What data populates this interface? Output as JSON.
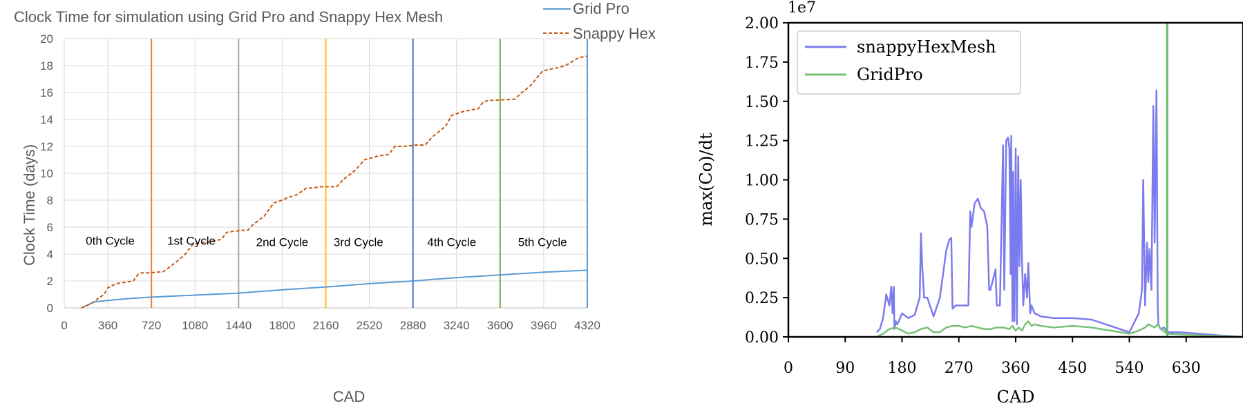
{
  "chart_data": [
    {
      "type": "line",
      "title": "Clock Time for simulation  using Grid Pro and Snappy Hex Mesh",
      "xlabel": "CAD",
      "ylabel": "Clock Time (days)",
      "xlim": [
        0,
        4320
      ],
      "ylim": [
        0,
        20
      ],
      "xticks": [
        0,
        360,
        720,
        1080,
        1440,
        1800,
        2160,
        2520,
        2880,
        3240,
        3600,
        3960,
        4320
      ],
      "yticks": [
        0,
        2,
        4,
        6,
        8,
        10,
        12,
        14,
        16,
        18,
        20
      ],
      "grid": true,
      "legend_position": "top-right, outside plot",
      "series": [
        {
          "name": "Grid Pro",
          "color": "#5b9bd5",
          "style": "solid",
          "x": [
            140,
            250,
            360,
            540,
            720,
            1080,
            1440,
            1800,
            2160,
            2520,
            2880,
            3240,
            3600,
            3960,
            4320
          ],
          "y": [
            0.0,
            0.45,
            0.55,
            0.7,
            0.8,
            0.95,
            1.1,
            1.35,
            1.55,
            1.8,
            2.0,
            2.25,
            2.45,
            2.65,
            2.8
          ]
        },
        {
          "name": "Snappy Hex",
          "color": "#c55a11",
          "style": "dashed",
          "x": [
            140,
            220,
            280,
            330,
            360,
            430,
            500,
            570,
            610,
            640,
            700,
            820,
            880,
            950,
            1000,
            1060,
            1100,
            1200,
            1300,
            1340,
            1400,
            1520,
            1560,
            1650,
            1730,
            1770,
            1850,
            1920,
            2000,
            2050,
            2120,
            2250,
            2300,
            2400,
            2480,
            2600,
            2680,
            2730,
            2800,
            2900,
            2980,
            3040,
            3150,
            3200,
            3300,
            3420,
            3460,
            3500,
            3720,
            3780,
            3850,
            3950,
            4100,
            4140,
            4250,
            4320
          ],
          "y": [
            0.0,
            0.3,
            0.7,
            1.0,
            1.5,
            1.8,
            1.9,
            2.0,
            2.5,
            2.6,
            2.6,
            2.7,
            3.1,
            3.6,
            4.0,
            4.7,
            4.8,
            4.9,
            5.1,
            5.6,
            5.7,
            5.8,
            6.2,
            6.8,
            7.8,
            7.9,
            8.2,
            8.4,
            8.9,
            8.9,
            9.0,
            9.0,
            9.5,
            10.2,
            11.0,
            11.3,
            11.4,
            12.0,
            12.0,
            12.1,
            12.1,
            12.7,
            13.5,
            14.3,
            14.6,
            14.8,
            15.3,
            15.4,
            15.5,
            16.0,
            16.5,
            17.6,
            17.9,
            18.0,
            18.6,
            18.7
          ]
        }
      ],
      "vertical_lines": [
        {
          "x": 720,
          "color": "#ed7d31"
        },
        {
          "x": 1440,
          "color": "#a5a5a5"
        },
        {
          "x": 2160,
          "color": "#ffc000"
        },
        {
          "x": 2880,
          "color": "#4472c4"
        },
        {
          "x": 3600,
          "color": "#70ad47"
        },
        {
          "x": 4320,
          "color": "#5b9bd5"
        }
      ],
      "annotations": [
        {
          "text": "0th Cycle",
          "x": 380,
          "y": 5.0
        },
        {
          "text": "1st Cycle",
          "x": 1050,
          "y": 5.0
        },
        {
          "text": "2nd Cycle",
          "x": 1800,
          "y": 4.9
        },
        {
          "text": "3rd Cycle",
          "x": 2430,
          "y": 4.9
        },
        {
          "text": "4th Cycle",
          "x": 3200,
          "y": 4.9
        },
        {
          "text": "5th Cycle",
          "x": 3950,
          "y": 4.9
        }
      ]
    },
    {
      "type": "line",
      "title": "",
      "xlabel": "CAD",
      "ylabel": "max(Co)/dt",
      "y_offset_label": "1e7",
      "xlim": [
        0,
        720
      ],
      "ylim": [
        0,
        2.0
      ],
      "xticks": [
        0,
        90,
        180,
        270,
        360,
        450,
        540,
        630
      ],
      "yticks": [
        "0.00",
        "0.25",
        "0.50",
        "0.75",
        "1.00",
        "1.25",
        "1.50",
        "1.75",
        "2.00"
      ],
      "grid": false,
      "legend_position": "top-left",
      "vertical_lines": [
        {
          "x": 600,
          "color": "#66bb66"
        }
      ],
      "series": [
        {
          "name": "snappyHexMesh",
          "color": "#7b7bee",
          "style": "solid",
          "x": [
            140,
            145,
            150,
            155,
            160,
            163,
            165,
            167,
            168,
            170,
            172,
            175,
            180,
            190,
            200,
            208,
            210,
            212,
            215,
            220,
            230,
            240,
            250,
            255,
            258,
            260,
            265,
            270,
            280,
            285,
            288,
            290,
            295,
            300,
            305,
            310,
            315,
            318,
            320,
            325,
            328,
            330,
            335,
            340,
            342,
            345,
            348,
            350,
            352,
            353,
            355,
            356,
            358,
            360,
            362,
            364,
            366,
            368,
            370,
            372,
            375,
            378,
            380,
            383,
            385,
            390,
            400,
            420,
            450,
            480,
            510,
            540,
            555,
            560,
            562,
            565,
            568,
            570,
            572,
            575,
            578,
            580,
            583,
            585,
            586,
            588,
            590,
            595,
            600,
            620,
            650,
            680,
            720
          ],
          "y": [
            0.03,
            0.05,
            0.12,
            0.27,
            0.2,
            0.32,
            0.15,
            0.32,
            0.05,
            0.1,
            0.08,
            0.1,
            0.15,
            0.12,
            0.14,
            0.25,
            0.66,
            0.45,
            0.25,
            0.25,
            0.13,
            0.25,
            0.55,
            0.62,
            0.63,
            0.18,
            0.2,
            0.2,
            0.2,
            0.2,
            0.8,
            0.7,
            0.85,
            0.88,
            0.82,
            0.8,
            0.7,
            0.3,
            0.3,
            0.38,
            0.43,
            0.2,
            0.2,
            1.22,
            0.3,
            1.25,
            1.27,
            1.2,
            0.4,
            1.28,
            0.1,
            1.05,
            0.1,
            1.2,
            0.08,
            1.15,
            0.45,
            1.0,
            0.5,
            0.2,
            0.4,
            0.25,
            0.47,
            0.15,
            0.2,
            0.15,
            0.13,
            0.12,
            0.12,
            0.11,
            0.07,
            0.03,
            0.15,
            0.3,
            1.0,
            0.2,
            0.6,
            0.35,
            0.56,
            0.3,
            1.47,
            0.6,
            1.57,
            0.2,
            0.08,
            0.06,
            0.05,
            0.06,
            0.03,
            0.03,
            0.02,
            0.01,
            0.0
          ]
        },
        {
          "name": "GridPro",
          "color": "#77c077",
          "style": "solid",
          "x": [
            140,
            150,
            160,
            170,
            180,
            190,
            200,
            210,
            220,
            230,
            240,
            250,
            260,
            270,
            280,
            290,
            300,
            310,
            320,
            330,
            340,
            350,
            355,
            360,
            365,
            370,
            375,
            380,
            385,
            390,
            400,
            420,
            450,
            480,
            510,
            540,
            555,
            565,
            570,
            575,
            580,
            585,
            590,
            600,
            650,
            720
          ],
          "y": [
            0.0,
            0.02,
            0.05,
            0.06,
            0.04,
            0.02,
            0.03,
            0.05,
            0.06,
            0.03,
            0.03,
            0.06,
            0.07,
            0.07,
            0.06,
            0.07,
            0.06,
            0.05,
            0.05,
            0.06,
            0.06,
            0.05,
            0.07,
            0.04,
            0.06,
            0.04,
            0.08,
            0.1,
            0.07,
            0.08,
            0.07,
            0.06,
            0.07,
            0.06,
            0.04,
            0.02,
            0.04,
            0.06,
            0.08,
            0.07,
            0.06,
            0.08,
            0.05,
            0.02,
            0.01,
            0.0
          ]
        }
      ]
    }
  ]
}
